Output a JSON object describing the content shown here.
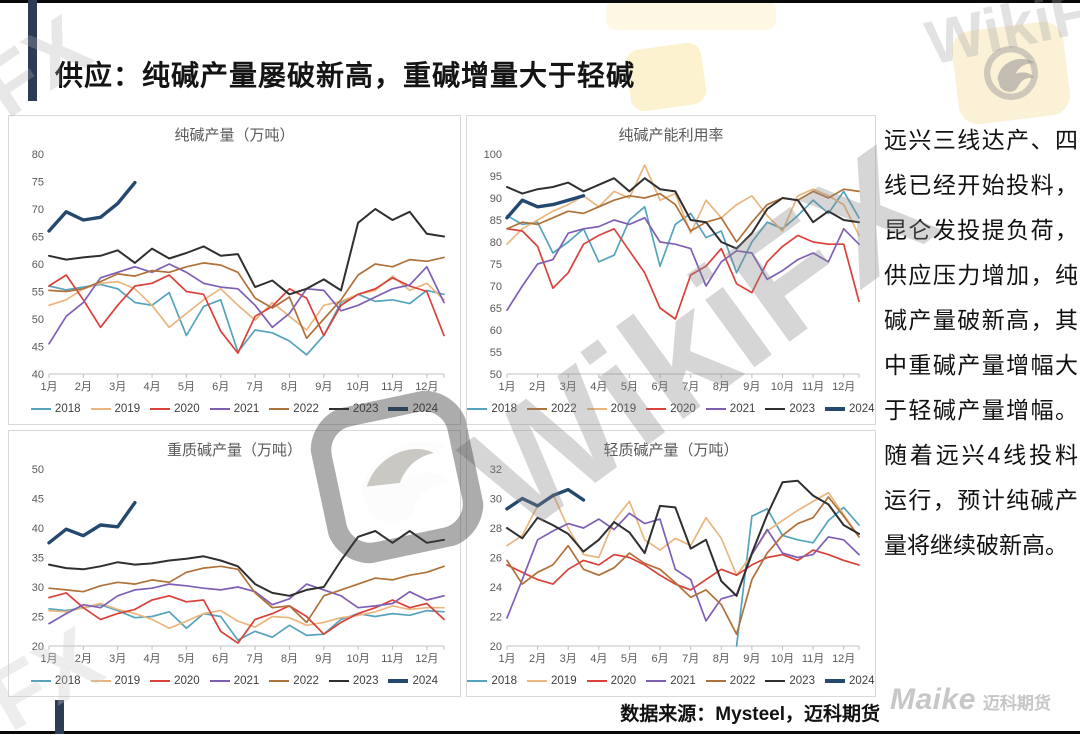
{
  "title": "供应：纯碱产量屡破新高，重碱增量大于轻碱",
  "right_panel": {
    "text": "远兴三线达产、四线已经开始投料，昆仑发投提负荷，供应压力增加，纯碱产量破新高，其中重碱产量增幅大于轻碱产量增幅。随着远兴4线投料运行，预计纯碱产量将继续破新高。"
  },
  "source_note": "数据来源：Mysteel，迈科期货",
  "logo": {
    "brand": "Maike",
    "brand_cn": "迈科期货"
  },
  "watermark": {
    "text": "WikiFX",
    "short": "FX"
  },
  "colors": {
    "accent_navy": "#2d3c55",
    "panel_border": "#d9d9d9",
    "axis_label": "#595959",
    "y2018": "#55a3bd",
    "y2019": "#eab67e",
    "y2020": "#d9413a",
    "y2021": "#7e5fb5",
    "y2022": "#b0713a",
    "y2023": "#2f2f2f",
    "y2024": "#24486e"
  },
  "months": [
    "1月",
    "2月",
    "3月",
    "4月",
    "5月",
    "6月",
    "7月",
    "8月",
    "9月",
    "10月",
    "11月",
    "12月"
  ],
  "chart_data": [
    {
      "type": "line",
      "title": "纯碱产量（万吨）",
      "ylim": [
        40,
        80
      ],
      "ytick_step": 5,
      "x_unit": "month_halves",
      "legend_position": "bottom",
      "grid": false,
      "legend_order": [
        "2018",
        "2019",
        "2020",
        "2021",
        "2022",
        "2023",
        "2024"
      ],
      "series": [
        {
          "name": "2018",
          "color": "#55a3bd",
          "thick": false,
          "values": [
            56,
            55.3,
            55.8,
            56.3,
            55.5,
            53,
            52.5,
            54.8,
            47,
            52.3,
            53.5,
            44,
            48,
            47.5,
            46,
            43.5,
            47,
            53,
            54.5,
            53.2,
            53.5,
            52.8,
            55.2,
            54.5
          ]
        },
        {
          "name": "2019",
          "color": "#eab67e",
          "thick": false,
          "values": [
            52.5,
            53.5,
            55.5,
            56.5,
            56.8,
            55.5,
            52.5,
            48.5,
            51,
            53.5,
            55.5,
            52.5,
            49.8,
            53,
            50.5,
            48,
            52.5,
            53.2,
            54.5,
            55.2,
            57.8,
            55.2,
            56.5,
            53.5
          ]
        },
        {
          "name": "2020",
          "color": "#d9413a",
          "thick": false,
          "values": [
            56,
            58,
            53.5,
            48.5,
            52.5,
            56,
            56.5,
            58,
            55,
            54.5,
            47.8,
            43.8,
            50.5,
            52.3,
            55.5,
            53.8,
            47,
            52.5,
            54.5,
            55.5,
            57.5,
            56,
            55,
            47
          ]
        },
        {
          "name": "2021",
          "color": "#7e5fb5",
          "thick": false,
          "values": [
            45.5,
            50.5,
            53,
            57.5,
            58.5,
            59.5,
            58.5,
            60,
            58.5,
            56.5,
            55.8,
            55.5,
            52.5,
            48.5,
            51,
            55.5,
            55.2,
            51.5,
            52.5,
            54,
            55.5,
            56.2,
            59.5,
            53
          ]
        },
        {
          "name": "2022",
          "color": "#b0713a",
          "thick": false,
          "values": [
            55.2,
            55,
            55.5,
            56.8,
            58.2,
            57.8,
            58.8,
            58.5,
            59.5,
            60.2,
            59.8,
            58.5,
            53.8,
            52,
            54,
            46.5,
            50,
            53.5,
            58,
            60,
            59.5,
            60.8,
            60.5,
            61.2
          ]
        },
        {
          "name": "2023",
          "color": "#2f2f2f",
          "thick": false,
          "values": [
            61.5,
            60.8,
            61.2,
            61.5,
            62.5,
            60.2,
            62.8,
            61,
            62,
            63.2,
            61.5,
            61.8,
            55.8,
            57,
            54.5,
            55.5,
            57.2,
            55.2,
            67.5,
            70,
            68,
            69.5,
            65.5,
            65
          ]
        },
        {
          "name": "2024",
          "color": "#24486e",
          "thick": true,
          "values": [
            66,
            69.5,
            68,
            68.5,
            71,
            74.8,
            null,
            null,
            null,
            null,
            null,
            null,
            null,
            null,
            null,
            null,
            null,
            null,
            null,
            null,
            null,
            null,
            null,
            null
          ]
        }
      ]
    },
    {
      "type": "line",
      "title": "纯碱产能利用率",
      "ylim": [
        50,
        100
      ],
      "ytick_step": 5,
      "x_unit": "month_halves",
      "legend_position": "bottom",
      "grid": false,
      "legend_order": [
        "2018",
        "2022",
        "2019",
        "2020",
        "2021",
        "2023",
        "2024"
      ],
      "series": [
        {
          "name": "2018",
          "color": "#55a3bd",
          "thick": false,
          "values": [
            86,
            84,
            84.5,
            77.5,
            80,
            83,
            75.5,
            77,
            85,
            88,
            74.5,
            84,
            86.5,
            81,
            82.5,
            73,
            80,
            84.5,
            83,
            86,
            89.5,
            86.5,
            91.5,
            85.5
          ]
        },
        {
          "name": "2019",
          "color": "#eab67e",
          "thick": false,
          "values": [
            79.5,
            83,
            85,
            87,
            88.5,
            90.5,
            88,
            91.5,
            90,
            97.5,
            89.5,
            91,
            82,
            89.5,
            85.5,
            88.5,
            90.5,
            86,
            82.5,
            90.5,
            92,
            90.5,
            88.5,
            81.5
          ]
        },
        {
          "name": "2020",
          "color": "#d9413a",
          "thick": false,
          "values": [
            83,
            82.5,
            79,
            69.5,
            73,
            79.5,
            81.5,
            83,
            78,
            73,
            65,
            62.5,
            72.5,
            74.5,
            78.5,
            70.5,
            68.5,
            75.5,
            79,
            81.5,
            80,
            79.5,
            79.5,
            66.5
          ]
        },
        {
          "name": "2021",
          "color": "#7e5fb5",
          "thick": false,
          "values": [
            64.5,
            70,
            75,
            76,
            82,
            83,
            83.5,
            85,
            84,
            85.5,
            80,
            79.5,
            78.5,
            70,
            75.5,
            78,
            77.5,
            71.5,
            73.5,
            76,
            77.5,
            75.5,
            83,
            79.5
          ]
        },
        {
          "name": "2022",
          "color": "#b0713a",
          "thick": false,
          "values": [
            83,
            84.5,
            84,
            85.5,
            87,
            86.5,
            88,
            89.5,
            90.5,
            90,
            91,
            88.5,
            82.5,
            84.5,
            85.5,
            80,
            84.5,
            88.5,
            90,
            89.5,
            91.5,
            90,
            92,
            91.5
          ]
        },
        {
          "name": "2023",
          "color": "#2f2f2f",
          "thick": false,
          "values": [
            92.5,
            91,
            92,
            92.5,
            93.5,
            91.5,
            93,
            94.5,
            91.5,
            94.5,
            92,
            91.5,
            85,
            84.5,
            80,
            78.5,
            82,
            87.5,
            90,
            89.5,
            84.5,
            87,
            85,
            84.5
          ]
        },
        {
          "name": "2024",
          "color": "#24486e",
          "thick": true,
          "values": [
            85.5,
            89.5,
            88,
            88.5,
            89.5,
            90.5,
            null,
            null,
            null,
            null,
            null,
            null,
            null,
            null,
            null,
            null,
            null,
            null,
            null,
            null,
            null,
            null,
            null,
            null
          ]
        }
      ]
    },
    {
      "type": "line",
      "title": "重质碱产量（万吨）",
      "ylim": [
        20,
        50
      ],
      "ytick_step": 5,
      "x_unit": "month_halves",
      "legend_position": "bottom",
      "grid": false,
      "legend_order": [
        "2018",
        "2019",
        "2020",
        "2021",
        "2022",
        "2023",
        "2024"
      ],
      "series": [
        {
          "name": "2018",
          "color": "#55a3bd",
          "thick": false,
          "values": [
            26.3,
            26,
            26.5,
            27,
            26,
            24.8,
            25,
            25.8,
            23,
            25.5,
            25,
            21,
            22.5,
            21.5,
            23.5,
            21.8,
            22,
            24.5,
            25.5,
            25,
            25.5,
            25.2,
            26,
            25.8
          ]
        },
        {
          "name": "2019",
          "color": "#eab67e",
          "thick": false,
          "values": [
            26,
            25.8,
            26.5,
            27.2,
            26.2,
            25.5,
            24.5,
            23,
            24.2,
            25.5,
            26,
            24.2,
            23.2,
            25,
            24.8,
            23.5,
            24,
            24.8,
            25.2,
            25.8,
            26.8,
            26.2,
            26.5,
            26.5
          ]
        },
        {
          "name": "2020",
          "color": "#d9413a",
          "thick": false,
          "values": [
            28.2,
            29,
            26.5,
            24.5,
            25.5,
            26.2,
            27.8,
            28.5,
            27.5,
            27.8,
            22.5,
            20.5,
            24.5,
            25.5,
            26.8,
            25,
            22,
            24,
            25.5,
            26.5,
            27.8,
            26.5,
            27.2,
            24.5
          ]
        },
        {
          "name": "2021",
          "color": "#7e5fb5",
          "thick": false,
          "values": [
            23.8,
            25.5,
            27,
            26.5,
            28.5,
            29.5,
            29.8,
            30.5,
            30.2,
            29.8,
            29.5,
            30,
            29.2,
            27,
            28,
            30.5,
            29.5,
            28.5,
            26.5,
            26.8,
            27.2,
            29.2,
            27.8,
            28.5
          ]
        },
        {
          "name": "2022",
          "color": "#b0713a",
          "thick": false,
          "values": [
            29.8,
            29.5,
            29.2,
            30.2,
            30.8,
            30.5,
            31.2,
            30.8,
            32.5,
            33.2,
            33.5,
            33,
            29,
            26.5,
            26.8,
            24,
            28.5,
            29.5,
            30.5,
            31.5,
            31.2,
            32,
            32.5,
            33.5
          ]
        },
        {
          "name": "2023",
          "color": "#2f2f2f",
          "thick": false,
          "values": [
            33.8,
            33.2,
            33,
            33.5,
            34.2,
            33.8,
            34,
            34.5,
            34.8,
            35.2,
            34.5,
            33.5,
            30.5,
            29,
            28.5,
            29.5,
            30,
            34.5,
            38.5,
            39.5,
            37.5,
            39.5,
            37.5,
            38
          ]
        },
        {
          "name": "2024",
          "color": "#24486e",
          "thick": true,
          "values": [
            37.5,
            39.8,
            38.7,
            40.5,
            40.2,
            44.3,
            null,
            null,
            null,
            null,
            null,
            null,
            null,
            null,
            null,
            null,
            null,
            null,
            null,
            null,
            null,
            null,
            null,
            null
          ]
        }
      ]
    },
    {
      "type": "line",
      "title": "轻质碱产量（万吨）",
      "ylim": [
        20,
        32
      ],
      "ytick_step": 2,
      "x_unit": "month_halves",
      "legend_position": "bottom",
      "grid": false,
      "legend_order": [
        "2018",
        "2019",
        "2020",
        "2021",
        "2022",
        "2023",
        "2024"
      ],
      "series": [
        {
          "name": "2018",
          "color": "#55a3bd",
          "thick": false,
          "values": [
            null,
            null,
            null,
            null,
            null,
            null,
            null,
            null,
            null,
            null,
            null,
            null,
            null,
            null,
            null,
            20,
            28.8,
            29.3,
            27.5,
            27.2,
            27,
            28.5,
            29.4,
            28.2
          ]
        },
        {
          "name": "2019",
          "color": "#eab67e",
          "thick": false,
          "values": [
            26.8,
            27.5,
            29.5,
            30.3,
            28,
            26.2,
            26,
            28.5,
            29.8,
            27.2,
            26.5,
            27.3,
            26.8,
            28.7,
            27.3,
            24.8,
            26.2,
            27.8,
            28.5,
            29.2,
            29.8,
            30.4,
            28.9,
            27.4
          ]
        },
        {
          "name": "2020",
          "color": "#d9413a",
          "thick": false,
          "values": [
            25.5,
            25,
            24.5,
            24.2,
            25.2,
            25.8,
            25.5,
            26.2,
            26,
            25.5,
            24.8,
            24.2,
            23.8,
            24.5,
            25.2,
            24.8,
            25.5,
            26,
            26.2,
            25.8,
            26.5,
            26.2,
            25.8,
            25.5
          ]
        },
        {
          "name": "2021",
          "color": "#7e5fb5",
          "thick": false,
          "values": [
            21.9,
            24.5,
            27.2,
            27.8,
            28.3,
            28,
            28.6,
            27.9,
            29,
            28.3,
            28.6,
            25.2,
            24.5,
            21.7,
            23.2,
            23.5,
            26.2,
            27.9,
            26.3,
            26,
            26.2,
            27.4,
            27.2,
            26.2
          ]
        },
        {
          "name": "2022",
          "color": "#b0713a",
          "thick": false,
          "values": [
            25.8,
            24.2,
            25,
            25.5,
            26.8,
            25.2,
            24.8,
            25.3,
            26.3,
            25.6,
            25.2,
            24.3,
            23.3,
            23.8,
            22.8,
            20.8,
            24.5,
            26.3,
            27.5,
            28.3,
            28.7,
            30.1,
            28.8,
            27.4
          ]
        },
        {
          "name": "2023",
          "color": "#2f2f2f",
          "thick": false,
          "values": [
            28,
            27.3,
            28.7,
            28.2,
            27.6,
            26.4,
            27.2,
            28.4,
            27.7,
            26.3,
            29.5,
            29.4,
            26.6,
            27.2,
            24.4,
            23.4,
            26.3,
            28.9,
            31.1,
            31.2,
            30.2,
            29.6,
            28.2,
            27.6
          ]
        },
        {
          "name": "2024",
          "color": "#24486e",
          "thick": true,
          "values": [
            29.3,
            30,
            29.5,
            30.2,
            30.6,
            29.9,
            null,
            null,
            null,
            null,
            null,
            null,
            null,
            null,
            null,
            null,
            null,
            null,
            null,
            null,
            null,
            null,
            null,
            null
          ]
        }
      ]
    }
  ]
}
